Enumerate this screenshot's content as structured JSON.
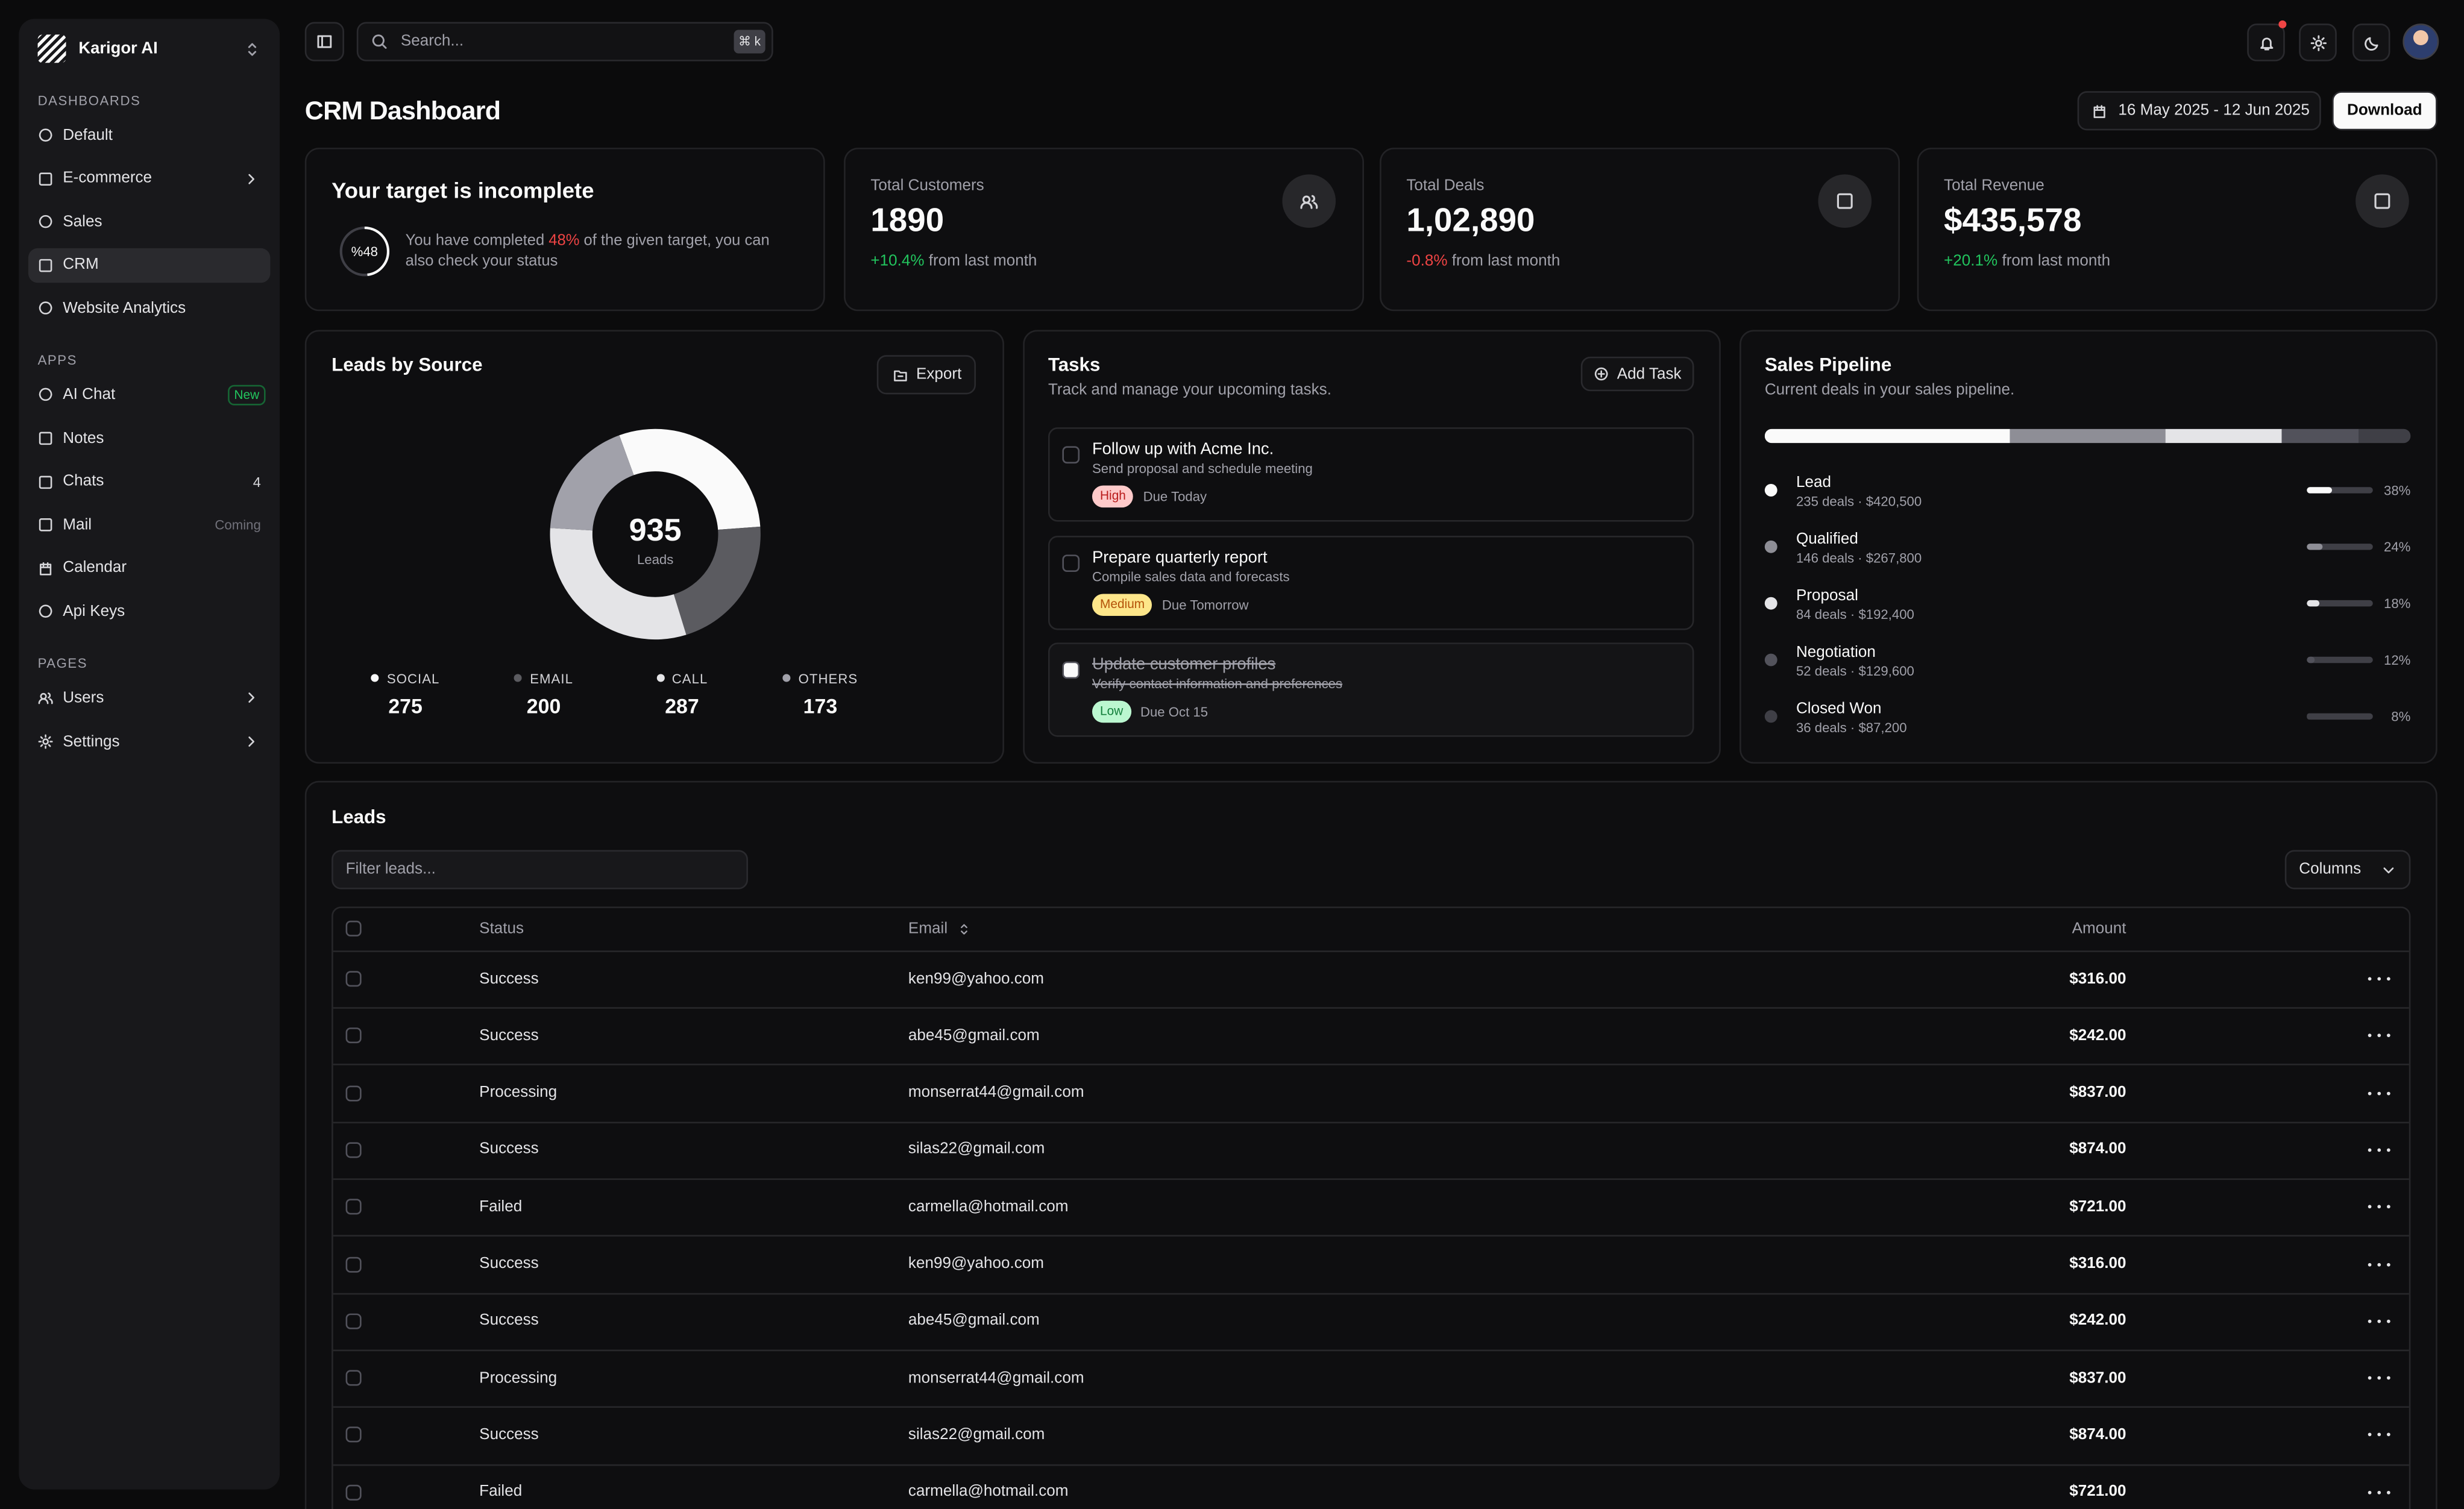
{
  "sidebar": {
    "brand": "Karigor AI",
    "sections": [
      {
        "title": "DASHBOARDS",
        "items": [
          {
            "label": "Default",
            "icon": "circle"
          },
          {
            "label": "E-commerce",
            "icon": "sq",
            "submenu": true
          },
          {
            "label": "Sales",
            "icon": "circle"
          },
          {
            "label": "CRM",
            "icon": "sq",
            "active": true
          },
          {
            "label": "Website Analytics",
            "icon": "circle"
          }
        ]
      },
      {
        "title": "APPS",
        "items": [
          {
            "label": "AI Chat",
            "icon": "circle",
            "badge": "New",
            "badge_style": "green"
          },
          {
            "label": "Notes",
            "icon": "sq"
          },
          {
            "label": "Chats",
            "icon": "sq",
            "badge": "4",
            "badge_style": "plain"
          },
          {
            "label": "Mail",
            "icon": "sq",
            "badge": "Coming",
            "badge_style": "muted"
          },
          {
            "label": "Calendar",
            "icon": "calendar"
          },
          {
            "label": "Api Keys",
            "icon": "circle"
          }
        ]
      },
      {
        "title": "PAGES",
        "items": [
          {
            "label": "Users",
            "icon": "users",
            "submenu": true
          },
          {
            "label": "Settings",
            "icon": "gear",
            "submenu": true
          }
        ]
      }
    ]
  },
  "topbar": {
    "search_placeholder": "Search...",
    "shortcut": "⌘ k"
  },
  "page": {
    "title": "CRM Dashboard",
    "date_range": "16 May 2025 - 12 Jun 2025",
    "download": "Download"
  },
  "target": {
    "title": "Your target is incomplete",
    "ring_label": "%48",
    "progress": 48,
    "message": [
      "You have completed ",
      "48%",
      " of the given target, you can also check your status"
    ]
  },
  "stats": [
    {
      "label": "Total Customers",
      "value": "1890",
      "change": "+10.4%",
      "change_color": "#22c55e",
      "note": " from last month",
      "icon": "users"
    },
    {
      "label": "Total Deals",
      "value": "1,02,890",
      "change": "-0.8%",
      "change_color": "#ef4444",
      "note": " from last month",
      "icon": "sq"
    },
    {
      "label": "Total Revenue",
      "value": "$435,578",
      "change": "+20.1%",
      "change_color": "#22c55e",
      "note": " from last month",
      "icon": "sq"
    }
  ],
  "leads_by_source": {
    "title": "Leads by Source",
    "export": "Export",
    "total": 935,
    "total_label": "Leads",
    "sources": [
      {
        "name": "SOCIAL",
        "value": 275,
        "color": "#fafafa"
      },
      {
        "name": "EMAIL",
        "value": 200,
        "color": "#5b5b60"
      },
      {
        "name": "CALL",
        "value": 287,
        "color": "#e4e4e7"
      },
      {
        "name": "OTHERS",
        "value": 173,
        "color": "#a1a1aa"
      }
    ]
  },
  "tasks": {
    "title": "Tasks",
    "subtitle": "Track and manage your upcoming tasks.",
    "add": "Add Task",
    "items": [
      {
        "title": "Follow up with Acme Inc.",
        "description": "Send proposal and schedule meeting",
        "priority": "High",
        "priority_bg": "#fecaca",
        "priority_fg": "#b91c1c",
        "due": "Due Today",
        "done": false
      },
      {
        "title": "Prepare quarterly report",
        "description": "Compile sales data and forecasts",
        "priority": "Medium",
        "priority_bg": "#fde68a",
        "priority_fg": "#b45309",
        "due": "Due Tomorrow",
        "done": false
      },
      {
        "title": "Update customer profiles",
        "description": "Verify contact information and preferences",
        "priority": "Low",
        "priority_bg": "#bbf7d0",
        "priority_fg": "#15803d",
        "due": "Due Oct 15",
        "done": true
      }
    ]
  },
  "pipeline": {
    "title": "Sales Pipeline",
    "subtitle": "Current deals in your sales pipeline.",
    "stages": [
      {
        "name": "Lead",
        "detail": "235 deals · $420,500",
        "percent": 38,
        "percent_label": "38%",
        "color": "#fafafa"
      },
      {
        "name": "Qualified",
        "detail": "146 deals · $267,800",
        "percent": 24,
        "percent_label": "24%",
        "color": "#8e8e96"
      },
      {
        "name": "Proposal",
        "detail": "84 deals · $192,400",
        "percent": 18,
        "percent_label": "18%",
        "color": "#e4e4e7"
      },
      {
        "name": "Negotiation",
        "detail": "52 deals · $129,600",
        "percent": 12,
        "percent_label": "12%",
        "color": "#52525b"
      },
      {
        "name": "Closed Won",
        "detail": "36 deals · $87,200",
        "percent": 8,
        "percent_label": "8%",
        "color": "#3f3f46"
      }
    ]
  },
  "leads_table": {
    "title": "Leads",
    "filter_placeholder": "Filter leads...",
    "columns_button": "Columns",
    "headers": [
      "Status",
      "Email",
      "Amount"
    ],
    "rows": [
      [
        "Success",
        "ken99@yahoo.com",
        "$316.00"
      ],
      [
        "Success",
        "abe45@gmail.com",
        "$242.00"
      ],
      [
        "Processing",
        "monserrat44@gmail.com",
        "$837.00"
      ],
      [
        "Success",
        "silas22@gmail.com",
        "$874.00"
      ],
      [
        "Failed",
        "carmella@hotmail.com",
        "$721.00"
      ],
      [
        "Success",
        "ken99@yahoo.com",
        "$316.00"
      ],
      [
        "Success",
        "abe45@gmail.com",
        "$242.00"
      ],
      [
        "Processing",
        "monserrat44@gmail.com",
        "$837.00"
      ],
      [
        "Success",
        "silas22@gmail.com",
        "$874.00"
      ],
      [
        "Failed",
        "carmella@hotmail.com",
        "$721.00"
      ]
    ]
  }
}
